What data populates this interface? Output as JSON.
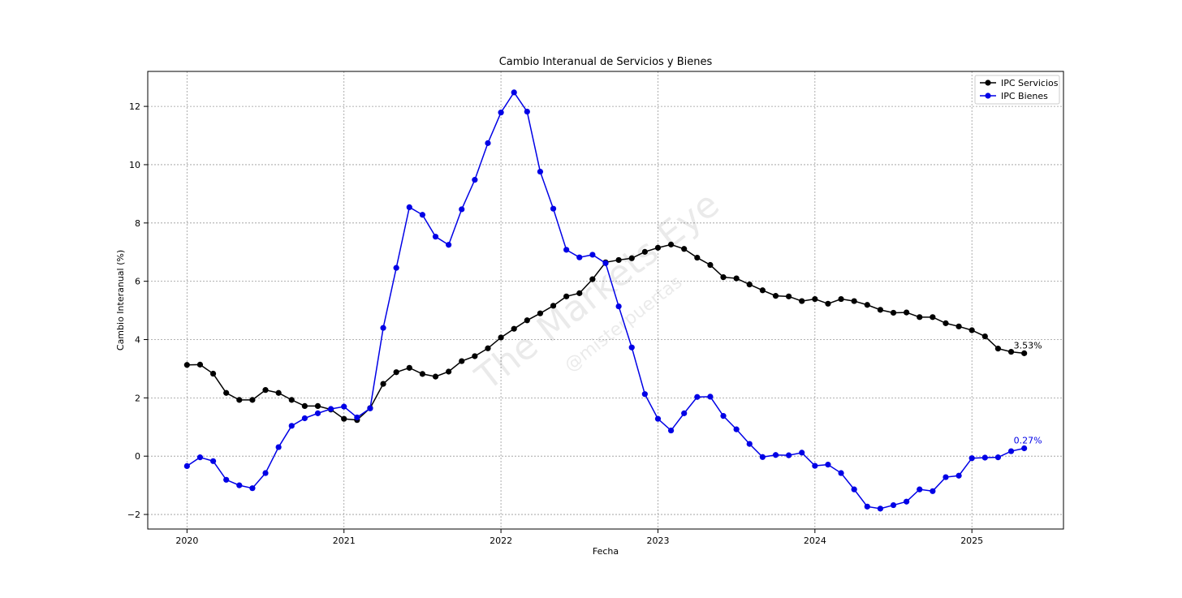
{
  "chart_data": {
    "type": "line",
    "title": "Cambio Interanual de Servicios y Bienes",
    "xlabel": "Fecha",
    "ylabel": "Cambio Interanual (%)",
    "x_tick_labels": [
      "2020",
      "2021",
      "2022",
      "2023",
      "2024",
      "2025"
    ],
    "y_tick_labels": [
      "−2",
      "0",
      "2",
      "4",
      "6",
      "8",
      "10",
      "12"
    ],
    "xlim": [
      "2019-10",
      "2025-08"
    ],
    "ylim": [
      -2.5,
      13.2
    ],
    "grid": true,
    "legend_position": "upper right",
    "x": [
      "2020-01",
      "2020-02",
      "2020-03",
      "2020-04",
      "2020-05",
      "2020-06",
      "2020-07",
      "2020-08",
      "2020-09",
      "2020-10",
      "2020-11",
      "2020-12",
      "2021-01",
      "2021-02",
      "2021-03",
      "2021-04",
      "2021-05",
      "2021-06",
      "2021-07",
      "2021-08",
      "2021-09",
      "2021-10",
      "2021-11",
      "2021-12",
      "2022-01",
      "2022-02",
      "2022-03",
      "2022-04",
      "2022-05",
      "2022-06",
      "2022-07",
      "2022-08",
      "2022-09",
      "2022-10",
      "2022-11",
      "2022-12",
      "2023-01",
      "2023-02",
      "2023-03",
      "2023-04",
      "2023-05",
      "2023-06",
      "2023-07",
      "2023-08",
      "2023-09",
      "2023-10",
      "2023-11",
      "2023-12",
      "2024-01",
      "2024-02",
      "2024-03",
      "2024-04",
      "2024-05",
      "2024-06",
      "2024-07",
      "2024-08",
      "2024-09",
      "2024-10",
      "2024-11",
      "2024-12",
      "2025-01",
      "2025-02",
      "2025-03",
      "2025-04",
      "2025-05"
    ],
    "series": [
      {
        "name": "IPC Servicios",
        "color": "#000000",
        "values": [
          3.13,
          3.14,
          2.83,
          2.17,
          1.93,
          1.93,
          2.27,
          2.17,
          1.93,
          1.72,
          1.72,
          1.6,
          1.28,
          1.24,
          1.65,
          2.48,
          2.88,
          3.03,
          2.82,
          2.73,
          2.9,
          3.26,
          3.43,
          3.7,
          4.07,
          4.37,
          4.66,
          4.9,
          5.16,
          5.48,
          5.59,
          6.07,
          6.65,
          6.73,
          6.79,
          7.01,
          7.15,
          7.26,
          7.11,
          6.81,
          6.56,
          6.14,
          6.1,
          5.89,
          5.69,
          5.5,
          5.48,
          5.32,
          5.39,
          5.23,
          5.39,
          5.32,
          5.19,
          5.02,
          4.92,
          4.93,
          4.77,
          4.77,
          4.56,
          4.45,
          4.32,
          4.11,
          3.69,
          3.58,
          3.53
        ],
        "end_label": "3.53%"
      },
      {
        "name": "IPC Bienes",
        "color": "#0000e6",
        "values": [
          -0.34,
          -0.04,
          -0.17,
          -0.81,
          -1.0,
          -1.1,
          -0.58,
          0.31,
          1.04,
          1.3,
          1.47,
          1.62,
          1.7,
          1.33,
          1.64,
          4.4,
          6.46,
          8.54,
          8.28,
          7.53,
          7.25,
          8.47,
          9.48,
          10.74,
          11.79,
          12.48,
          11.82,
          9.76,
          8.49,
          7.08,
          6.82,
          6.91,
          6.62,
          5.14,
          3.73,
          2.13,
          1.28,
          0.88,
          1.47,
          2.03,
          2.04,
          1.38,
          0.92,
          0.42,
          -0.03,
          0.04,
          0.03,
          0.12,
          -0.33,
          -0.29,
          -0.58,
          -1.14,
          -1.73,
          -1.8,
          -1.68,
          -1.56,
          -1.14,
          -1.2,
          -0.72,
          -0.67,
          -0.07,
          -0.05,
          -0.04,
          0.17,
          0.27
        ],
        "end_label": "0.27%"
      }
    ]
  },
  "watermark": {
    "main": "The Markets Eye",
    "sub": "@misterpuertas"
  }
}
